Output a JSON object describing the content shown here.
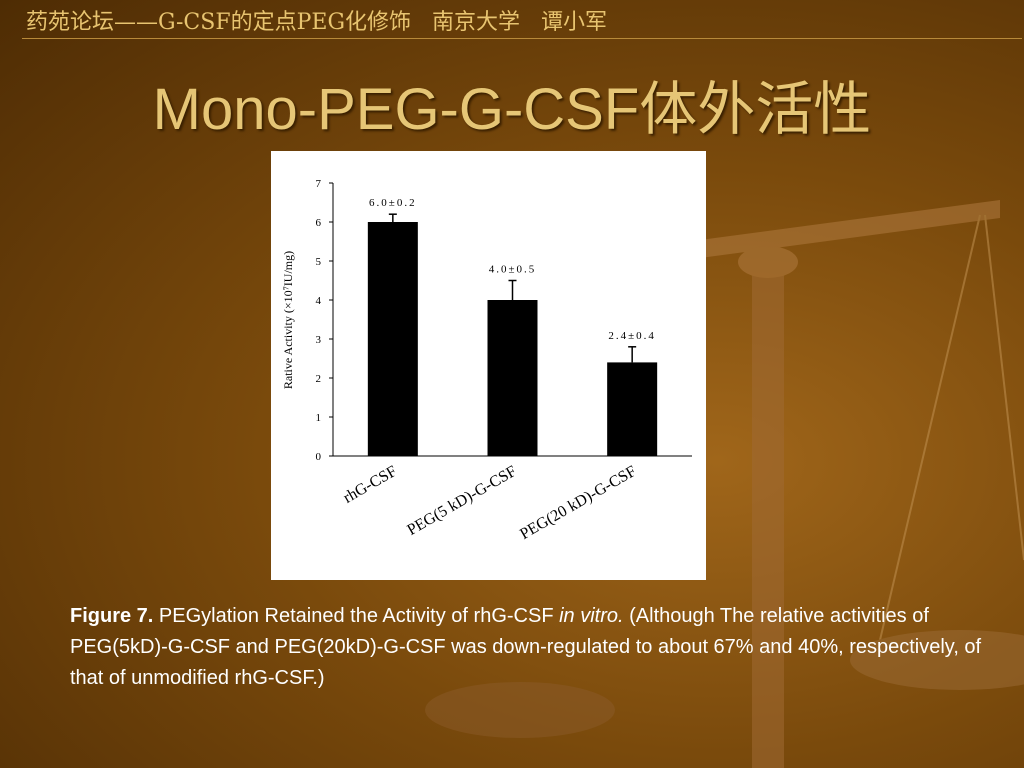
{
  "header": "药苑论坛——G-CSF的定点PEG化修饰   南京大学   谭小军",
  "title": "Mono-PEG-G-CSF体外活性",
  "chart_data": {
    "type": "bar",
    "y_label": "Rative Activity (×10⁷IU/mg)",
    "categories": [
      "rhG-CSF",
      "PEG(5 kD)-G-CSF",
      "PEG(20 kD)-G-CSF"
    ],
    "values": [
      6.0,
      4.0,
      2.4
    ],
    "errors": [
      0.2,
      0.5,
      0.4
    ],
    "value_labels": [
      "6.0±0.2",
      "4.0±0.5",
      "2.4±0.4"
    ],
    "color": "#000000",
    "ylim": [
      0,
      7
    ],
    "yticks": [
      0,
      1,
      2,
      3,
      4,
      5,
      6,
      7
    ],
    "grid": false
  },
  "caption": {
    "label": "Figure 7.",
    "text1": "PEGylation Retained the Activity of rhG-CSF",
    "italic": "in vitro.",
    "text2": "(Although The relative activities of PEG(5kD)-G-CSF and PEG(20kD)-G-CSF was down-regulated to about 67% and 40%, respectively, of that of unmodified rhG-CSF.)"
  }
}
